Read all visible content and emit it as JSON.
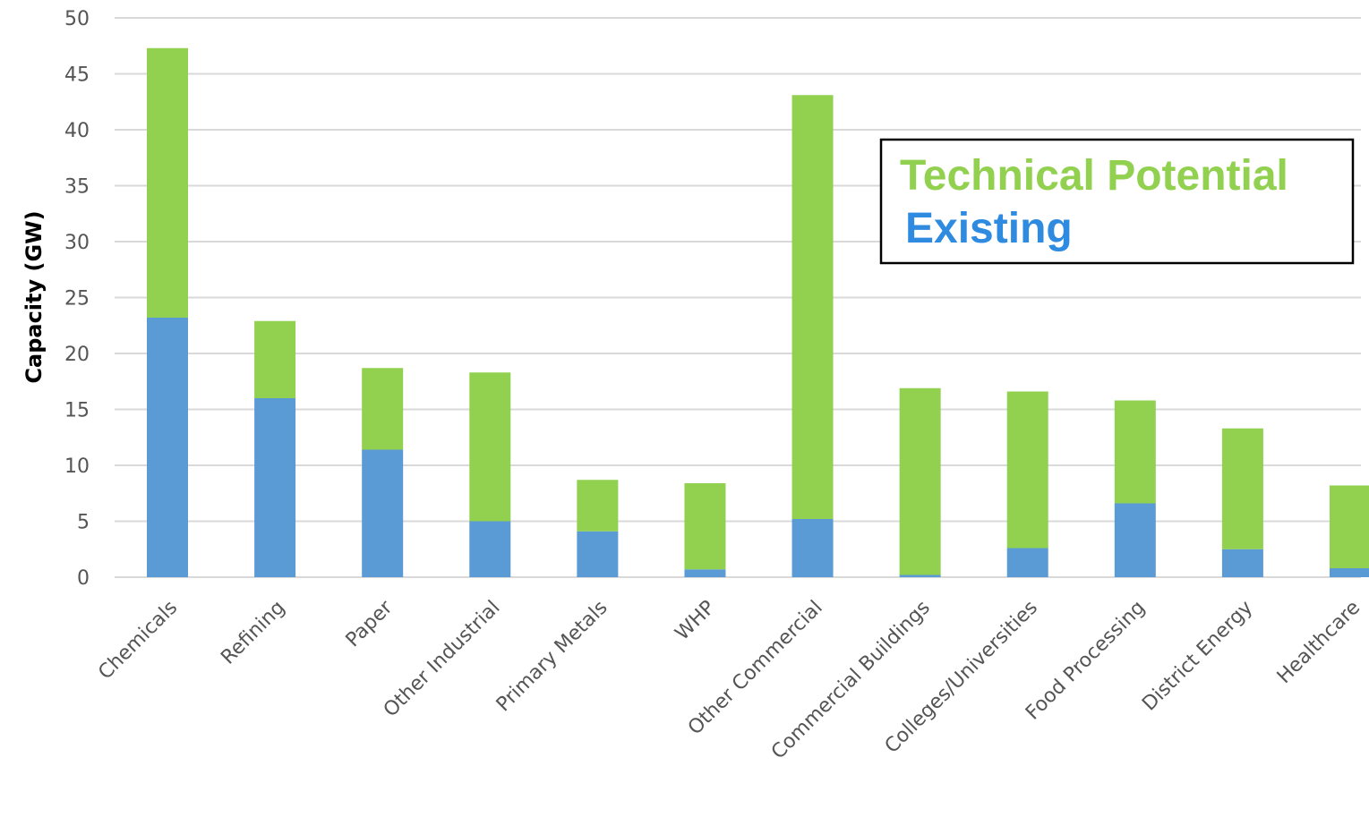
{
  "chart_data": {
    "type": "bar",
    "stacked": true,
    "categories": [
      "Chemicals",
      "Refining",
      "Paper",
      "Other Industrial",
      "Primary Metals",
      "WHP",
      "Other Commercial",
      "Commercial Buildings",
      "Colleges/Universities",
      "Food Processing",
      "District Energy",
      "Healthcare"
    ],
    "series": [
      {
        "name": "Existing",
        "color": "#5b9bd5",
        "values": [
          23.2,
          16.0,
          11.4,
          5.0,
          4.1,
          0.7,
          5.2,
          0.2,
          2.6,
          6.6,
          2.5,
          0.8
        ]
      },
      {
        "name": "Technical Potential",
        "color": "#92d050",
        "values": [
          24.1,
          6.9,
          7.3,
          13.3,
          4.6,
          7.7,
          37.9,
          16.7,
          14.0,
          9.2,
          10.8,
          7.4
        ]
      }
    ],
    "ylabel": "Capacity (GW)",
    "ylim": [
      0,
      50
    ],
    "yticks": [
      0,
      5,
      10,
      15,
      20,
      25,
      30,
      35,
      40,
      45,
      50
    ],
    "grid": true,
    "legend": {
      "placement": "top-right",
      "items": [
        {
          "label": "Technical Potential",
          "color": "#92d050"
        },
        {
          "label": "Existing",
          "color": "#2e8be0"
        }
      ]
    },
    "gridline_color": "#d9d9d9"
  }
}
